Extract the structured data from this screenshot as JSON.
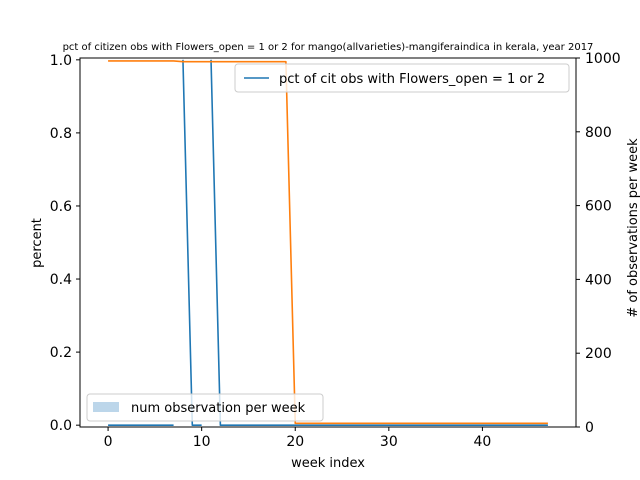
{
  "chart_data": {
    "type": "line",
    "title": "pct of citizen obs with Flowers_open = 1 or 2 for mango(allvarieties)-mangiferaindica in kerala, year 2017",
    "xlabel": "week index",
    "ylabel": "percent",
    "y2label": "# of observations per week",
    "xlim": [
      -3,
      50
    ],
    "ylim": [
      -0.005,
      1.005
    ],
    "y2lim": [
      0,
      1000
    ],
    "xticks": [
      0,
      10,
      20,
      30,
      40
    ],
    "yticks": [
      0.0,
      0.2,
      0.4,
      0.6,
      0.8,
      1.0
    ],
    "y2ticks": [
      0,
      200,
      400,
      600,
      800,
      1000
    ],
    "series": [
      {
        "name": "pct of cit obs with Flowers_open = 1 or 2",
        "axis": "left",
        "color": "#1f77b4",
        "x": [
          0,
          1,
          2,
          3,
          4,
          5,
          6,
          7,
          8,
          9,
          10,
          11,
          12,
          13,
          14,
          15,
          16,
          17,
          18,
          19,
          20,
          21,
          22,
          23,
          24,
          25,
          26,
          27,
          28,
          29,
          30,
          31,
          32,
          33,
          34,
          35,
          36,
          37,
          38,
          39,
          40,
          41,
          42,
          43,
          44,
          45,
          46,
          47
        ],
        "y": [
          0,
          0,
          0,
          0,
          0,
          0,
          0,
          0,
          1,
          0,
          0,
          1,
          0,
          0,
          0,
          0,
          0,
          0,
          0,
          0,
          0,
          0,
          0,
          0,
          0,
          0,
          0,
          0,
          0,
          0,
          0,
          0,
          0,
          0,
          0,
          0,
          0,
          0,
          0,
          0,
          0,
          0,
          0,
          0,
          0,
          0,
          0,
          0
        ],
        "gaps": [
          7,
          10
        ]
      },
      {
        "name": "num observation per week",
        "axis": "right",
        "color": "#ff7f0e",
        "x": [
          0,
          1,
          2,
          3,
          4,
          5,
          6,
          7,
          8,
          9,
          10,
          11,
          12,
          13,
          14,
          15,
          16,
          17,
          18,
          19,
          20,
          21,
          22,
          23,
          24,
          25,
          26,
          27,
          28,
          29,
          30,
          31,
          32,
          33,
          34,
          35,
          36,
          37,
          38,
          39,
          40,
          41,
          42,
          43,
          44,
          45,
          46,
          47
        ],
        "y": [
          992,
          992,
          992,
          992,
          992,
          992,
          992,
          992,
          990,
          990,
          990,
          990,
          990,
          990,
          990,
          990,
          990,
          990,
          990,
          990,
          10,
          10,
          10,
          10,
          10,
          10,
          10,
          10,
          10,
          10,
          10,
          10,
          10,
          10,
          10,
          10,
          10,
          10,
          10,
          10,
          10,
          10,
          10,
          10,
          10,
          10,
          10,
          10
        ]
      }
    ],
    "legends": [
      {
        "label": "pct of cit obs with Flowers_open = 1 or 2",
        "placement": "upper-right",
        "swatch": "line",
        "color": "#1f77b4"
      },
      {
        "label": "num observation per week",
        "placement": "lower-left",
        "swatch": "patch",
        "color": "#bcd6ea"
      }
    ]
  }
}
